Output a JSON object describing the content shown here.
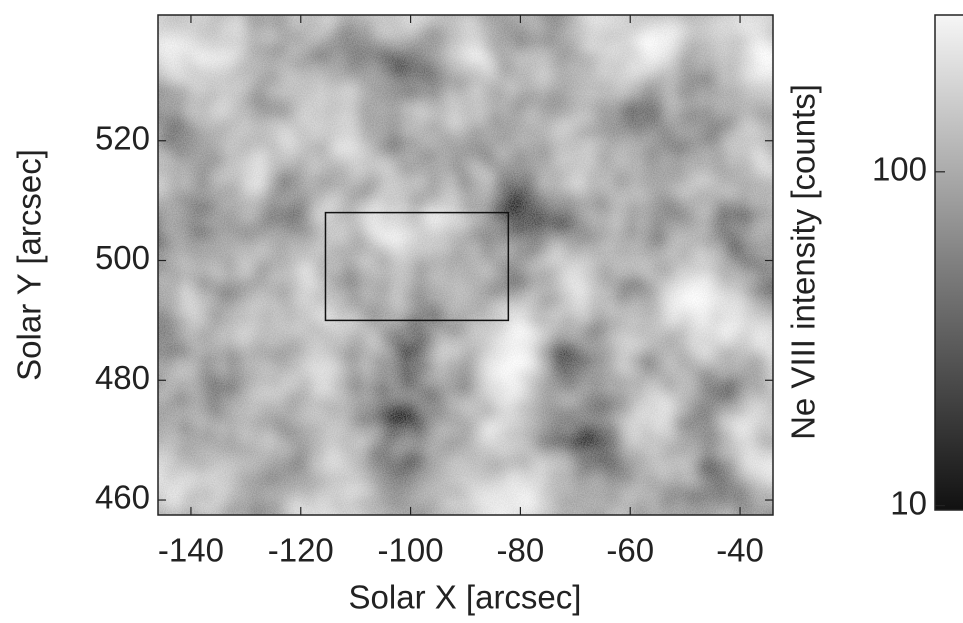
{
  "chart_data": {
    "type": "image",
    "xlabel": "Solar X [arcsec]",
    "ylabel": "Solar Y [arcsec]",
    "xlim": [
      -146,
      -34
    ],
    "xticks": [
      -140,
      -120,
      -100,
      -80,
      -60,
      -40
    ],
    "ylim": [
      457.5,
      541
    ],
    "yticks": [
      460,
      480,
      500,
      520
    ],
    "colormap": "gray",
    "box": {
      "x": [
        -115.5,
        -82.2
      ],
      "y": [
        490,
        508
      ]
    },
    "colorbar": {
      "label": "Ne VIII intensity [counts]",
      "lim": [
        9.7,
        295
      ],
      "ticks": [
        10,
        100
      ],
      "log": true
    }
  }
}
